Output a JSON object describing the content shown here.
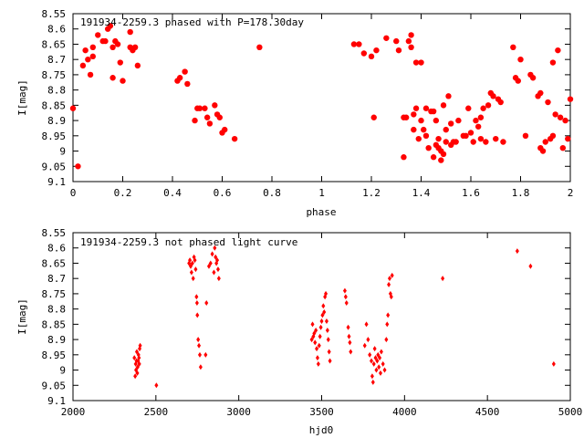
{
  "chart_data": [
    {
      "type": "scatter",
      "title": "191934-2259.3 phased with P=178.30day",
      "xlabel": "phase",
      "ylabel": "I[mag]",
      "xlim": [
        0,
        2
      ],
      "ylim": [
        8.55,
        9.1
      ],
      "y_inverted": true,
      "grid": false,
      "marker": "filled-circle-large",
      "color": "#ff0000",
      "xticks": [
        "0",
        "0.2",
        "0.4",
        "0.6",
        "0.8",
        "1",
        "1.2",
        "1.4",
        "1.6",
        "1.8",
        "2"
      ],
      "yticks": [
        "8.55",
        "8.6",
        "8.65",
        "8.7",
        "8.75",
        "8.8",
        "8.85",
        "8.9",
        "8.95",
        "9",
        "9.05",
        "9.1"
      ],
      "points": [
        [
          0.0,
          8.86
        ],
        [
          0.02,
          9.05
        ],
        [
          0.04,
          8.72
        ],
        [
          0.05,
          8.67
        ],
        [
          0.06,
          8.7
        ],
        [
          0.07,
          8.75
        ],
        [
          0.08,
          8.66
        ],
        [
          0.08,
          8.69
        ],
        [
          0.1,
          8.62
        ],
        [
          0.12,
          8.64
        ],
        [
          0.13,
          8.64
        ],
        [
          0.14,
          8.6
        ],
        [
          0.15,
          8.59
        ],
        [
          0.16,
          8.66
        ],
        [
          0.16,
          8.76
        ],
        [
          0.17,
          8.64
        ],
        [
          0.18,
          8.65
        ],
        [
          0.19,
          8.71
        ],
        [
          0.2,
          8.77
        ],
        [
          0.23,
          8.66
        ],
        [
          0.23,
          8.61
        ],
        [
          0.24,
          8.67
        ],
        [
          0.25,
          8.66
        ],
        [
          0.26,
          8.72
        ],
        [
          0.42,
          8.77
        ],
        [
          0.43,
          8.76
        ],
        [
          0.45,
          8.74
        ],
        [
          0.46,
          8.78
        ],
        [
          0.49,
          8.9
        ],
        [
          0.5,
          8.86
        ],
        [
          0.51,
          8.86
        ],
        [
          0.53,
          8.86
        ],
        [
          0.54,
          8.89
        ],
        [
          0.55,
          8.91
        ],
        [
          0.57,
          8.85
        ],
        [
          0.58,
          8.88
        ],
        [
          0.59,
          8.89
        ],
        [
          0.6,
          8.94
        ],
        [
          0.61,
          8.93
        ],
        [
          0.65,
          8.96
        ],
        [
          0.75,
          8.66
        ],
        [
          1.13,
          8.65
        ],
        [
          1.15,
          8.65
        ],
        [
          1.17,
          8.68
        ],
        [
          1.2,
          8.69
        ],
        [
          1.21,
          8.89
        ],
        [
          1.22,
          8.67
        ],
        [
          1.26,
          8.63
        ],
        [
          1.3,
          8.64
        ],
        [
          1.31,
          8.67
        ],
        [
          1.33,
          8.89
        ],
        [
          1.33,
          9.02
        ],
        [
          1.34,
          8.89
        ],
        [
          1.35,
          8.64
        ],
        [
          1.36,
          8.66
        ],
        [
          1.36,
          8.62
        ],
        [
          1.37,
          8.88
        ],
        [
          1.37,
          8.93
        ],
        [
          1.38,
          8.71
        ],
        [
          1.38,
          8.86
        ],
        [
          1.39,
          8.96
        ],
        [
          1.4,
          8.71
        ],
        [
          1.4,
          8.9
        ],
        [
          1.41,
          8.93
        ],
        [
          1.42,
          8.95
        ],
        [
          1.42,
          8.86
        ],
        [
          1.43,
          8.99
        ],
        [
          1.44,
          8.87
        ],
        [
          1.45,
          8.87
        ],
        [
          1.45,
          9.02
        ],
        [
          1.46,
          8.98
        ],
        [
          1.46,
          8.9
        ],
        [
          1.47,
          8.99
        ],
        [
          1.47,
          8.96
        ],
        [
          1.48,
          9.0
        ],
        [
          1.48,
          9.03
        ],
        [
          1.49,
          9.01
        ],
        [
          1.49,
          8.85
        ],
        [
          1.5,
          8.97
        ],
        [
          1.5,
          8.93
        ],
        [
          1.51,
          8.82
        ],
        [
          1.52,
          8.91
        ],
        [
          1.52,
          8.98
        ],
        [
          1.53,
          8.97
        ],
        [
          1.54,
          8.97
        ],
        [
          1.55,
          8.9
        ],
        [
          1.57,
          8.95
        ],
        [
          1.58,
          8.95
        ],
        [
          1.59,
          8.86
        ],
        [
          1.6,
          8.94
        ],
        [
          1.61,
          8.97
        ],
        [
          1.62,
          8.9
        ],
        [
          1.63,
          8.92
        ],
        [
          1.64,
          8.89
        ],
        [
          1.64,
          8.96
        ],
        [
          1.65,
          8.86
        ],
        [
          1.66,
          8.97
        ],
        [
          1.67,
          8.85
        ],
        [
          1.68,
          8.81
        ],
        [
          1.69,
          8.82
        ],
        [
          1.7,
          8.96
        ],
        [
          1.71,
          8.83
        ],
        [
          1.72,
          8.84
        ],
        [
          1.73,
          8.97
        ],
        [
          1.77,
          8.66
        ],
        [
          1.78,
          8.76
        ],
        [
          1.79,
          8.77
        ],
        [
          1.8,
          8.7
        ],
        [
          1.82,
          8.95
        ],
        [
          1.84,
          8.75
        ],
        [
          1.85,
          8.76
        ],
        [
          1.87,
          8.82
        ],
        [
          1.88,
          8.81
        ],
        [
          1.88,
          8.99
        ],
        [
          1.89,
          9.0
        ],
        [
          1.9,
          8.97
        ],
        [
          1.91,
          8.84
        ],
        [
          1.92,
          8.96
        ],
        [
          1.93,
          8.71
        ],
        [
          1.93,
          8.95
        ],
        [
          1.94,
          8.88
        ],
        [
          1.95,
          8.67
        ],
        [
          1.96,
          8.89
        ],
        [
          1.97,
          8.99
        ],
        [
          1.98,
          8.9
        ],
        [
          1.99,
          8.96
        ],
        [
          2.0,
          8.83
        ]
      ]
    },
    {
      "type": "scatter",
      "title": "191934-2259.3 not phased light curve",
      "xlabel": "hjd0",
      "ylabel": "I[mag]",
      "xlim": [
        2000,
        5000
      ],
      "ylim": [
        8.55,
        9.1
      ],
      "y_inverted": true,
      "grid": false,
      "marker": "small-diamond",
      "color": "#ff0000",
      "xticks": [
        "2000",
        "2500",
        "3000",
        "3500",
        "4000",
        "4500",
        "5000"
      ],
      "yticks": [
        "8.55",
        "8.6",
        "8.65",
        "8.7",
        "8.75",
        "8.8",
        "8.85",
        "8.9",
        "8.95",
        "9",
        "9.05",
        "9.1"
      ],
      "points": [
        [
          2370,
          8.96
        ],
        [
          2375,
          9.02
        ],
        [
          2378,
          8.98
        ],
        [
          2380,
          9.0
        ],
        [
          2383,
          8.97
        ],
        [
          2385,
          8.94
        ],
        [
          2388,
          9.01
        ],
        [
          2390,
          8.99
        ],
        [
          2393,
          8.97
        ],
        [
          2395,
          8.95
        ],
        [
          2398,
          8.96
        ],
        [
          2400,
          8.98
        ],
        [
          2402,
          8.93
        ],
        [
          2405,
          8.92
        ],
        [
          2503,
          9.05
        ],
        [
          2700,
          8.65
        ],
        [
          2705,
          8.64
        ],
        [
          2710,
          8.66
        ],
        [
          2715,
          8.68
        ],
        [
          2720,
          8.65
        ],
        [
          2725,
          8.7
        ],
        [
          2730,
          8.63
        ],
        [
          2735,
          8.64
        ],
        [
          2740,
          8.67
        ],
        [
          2745,
          8.76
        ],
        [
          2748,
          8.78
        ],
        [
          2750,
          8.82
        ],
        [
          2755,
          8.9
        ],
        [
          2760,
          8.92
        ],
        [
          2765,
          8.95
        ],
        [
          2770,
          8.99
        ],
        [
          2800,
          8.95
        ],
        [
          2805,
          8.78
        ],
        [
          2820,
          8.66
        ],
        [
          2830,
          8.65
        ],
        [
          2840,
          8.62
        ],
        [
          2850,
          8.68
        ],
        [
          2855,
          8.6
        ],
        [
          2860,
          8.63
        ],
        [
          2865,
          8.65
        ],
        [
          2870,
          8.64
        ],
        [
          2875,
          8.67
        ],
        [
          2880,
          8.7
        ],
        [
          3440,
          8.9
        ],
        [
          3445,
          8.85
        ],
        [
          3450,
          8.89
        ],
        [
          3455,
          8.88
        ],
        [
          3460,
          8.91
        ],
        [
          3465,
          8.87
        ],
        [
          3470,
          8.93
        ],
        [
          3475,
          8.96
        ],
        [
          3480,
          8.98
        ],
        [
          3485,
          8.92
        ],
        [
          3490,
          8.89
        ],
        [
          3495,
          8.86
        ],
        [
          3500,
          8.84
        ],
        [
          3505,
          8.82
        ],
        [
          3510,
          8.79
        ],
        [
          3515,
          8.81
        ],
        [
          3520,
          8.76
        ],
        [
          3525,
          8.75
        ],
        [
          3530,
          8.84
        ],
        [
          3535,
          8.87
        ],
        [
          3540,
          8.9
        ],
        [
          3545,
          8.94
        ],
        [
          3550,
          8.97
        ],
        [
          3640,
          8.74
        ],
        [
          3645,
          8.76
        ],
        [
          3650,
          8.78
        ],
        [
          3660,
          8.86
        ],
        [
          3665,
          8.89
        ],
        [
          3670,
          8.91
        ],
        [
          3675,
          8.94
        ],
        [
          3760,
          8.92
        ],
        [
          3770,
          8.85
        ],
        [
          3780,
          8.9
        ],
        [
          3790,
          8.95
        ],
        [
          3800,
          8.97
        ],
        [
          3805,
          9.02
        ],
        [
          3810,
          9.04
        ],
        [
          3815,
          8.98
        ],
        [
          3820,
          8.93
        ],
        [
          3825,
          8.96
        ],
        [
          3830,
          9.0
        ],
        [
          3835,
          8.97
        ],
        [
          3840,
          8.95
        ],
        [
          3845,
          8.99
        ],
        [
          3850,
          8.96
        ],
        [
          3855,
          9.01
        ],
        [
          3860,
          8.94
        ],
        [
          3870,
          8.98
        ],
        [
          3880,
          9.0
        ],
        [
          3890,
          8.9
        ],
        [
          3895,
          8.85
        ],
        [
          3900,
          8.82
        ],
        [
          3905,
          8.72
        ],
        [
          3910,
          8.7
        ],
        [
          3915,
          8.75
        ],
        [
          3920,
          8.76
        ],
        [
          3925,
          8.69
        ],
        [
          4230,
          8.7
        ],
        [
          4680,
          8.61
        ],
        [
          4760,
          8.66
        ],
        [
          4900,
          8.98
        ]
      ]
    }
  ]
}
